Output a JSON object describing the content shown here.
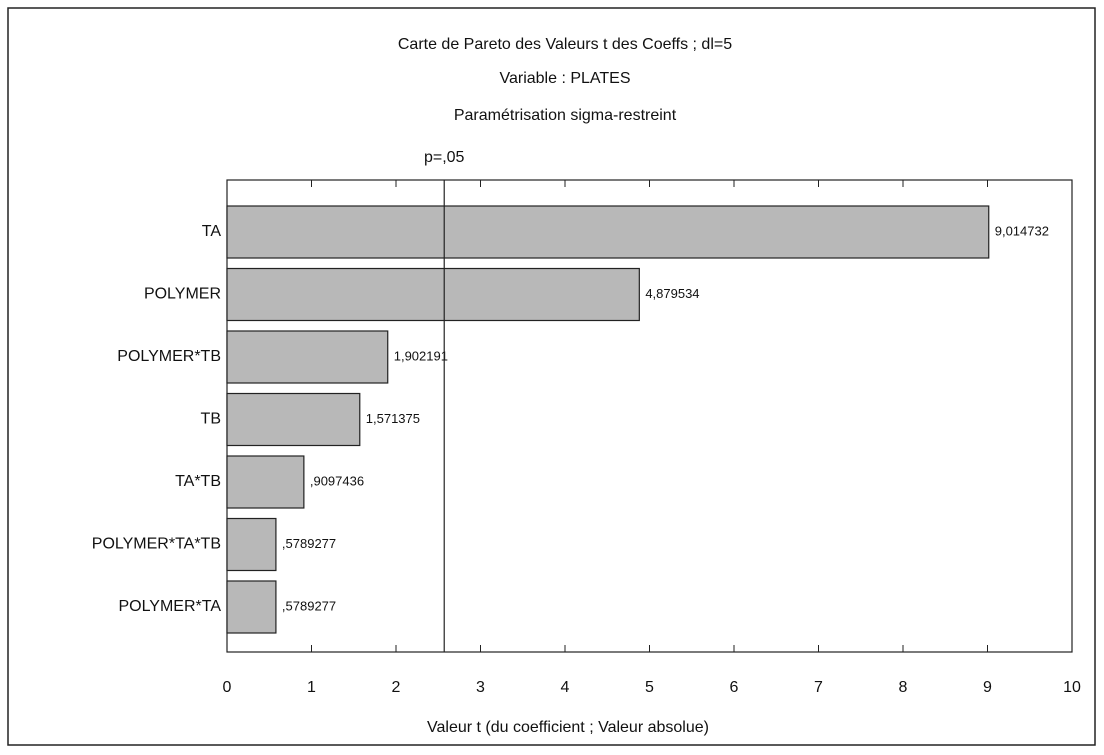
{
  "chart_data": {
    "type": "bar",
    "orientation": "horizontal",
    "title": "Carte de Pareto des Valeurs t des Coeffs ; dl=5",
    "subtitle": [
      "Variable : PLATES",
      "Paramétrisation sigma-restreint"
    ],
    "x_label": "Valeur t (du coefficient ; Valeur absolue)",
    "categories": [
      "TA",
      "POLYMER",
      "POLYMER*TB",
      "TB",
      "TA*TB",
      "POLYMER*TA*TB",
      "POLYMER*TA"
    ],
    "values": [
      9.014732,
      4.879534,
      1.902191,
      1.571375,
      0.9097436,
      0.5789277,
      0.5789277
    ],
    "value_labels": [
      "9,014732",
      "4,879534",
      "1,902191",
      "1,571375",
      ",9097436",
      ",5789277",
      ",5789277"
    ],
    "color": "#b8b8b8",
    "xlim": [
      0,
      10
    ],
    "xticks": [
      0,
      1,
      2,
      3,
      4,
      5,
      6,
      7,
      8,
      9,
      10
    ],
    "reference_line": {
      "label": "p=,05",
      "value": 2.570582
    }
  }
}
